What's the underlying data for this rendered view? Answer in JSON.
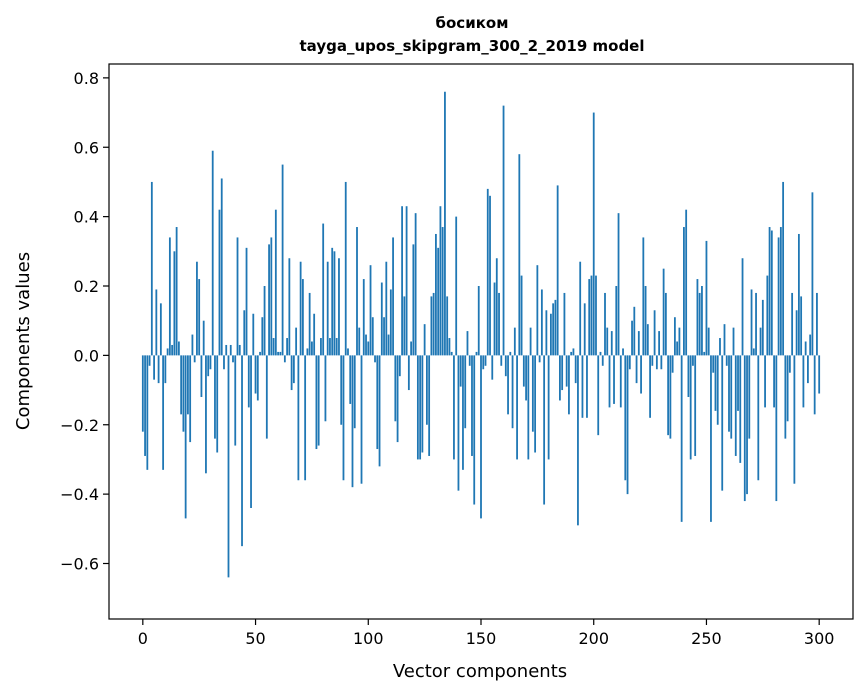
{
  "chart_data": {
    "type": "bar",
    "title": "босиком",
    "subtitle": "tayga_upos_skipgram_300_2_2019 model",
    "xlabel": "Vector components",
    "ylabel": "Components values",
    "xlim": [
      -15,
      315
    ],
    "ylim": [
      -0.76,
      0.84
    ],
    "xticks": [
      0,
      50,
      100,
      150,
      200,
      250,
      300
    ],
    "yticks": [
      -0.6,
      -0.4,
      -0.2,
      0.0,
      0.2,
      0.4,
      0.6,
      0.8
    ],
    "ytick_labels": [
      "−0.6",
      "−0.4",
      "−0.2",
      "0.0",
      "0.2",
      "0.4",
      "0.6",
      "0.8"
    ],
    "grid": false,
    "bar_color": "#1f77b4",
    "x_start": 0,
    "values": [
      -0.22,
      -0.29,
      -0.33,
      -0.03,
      0.5,
      -0.07,
      0.19,
      -0.08,
      0.15,
      -0.33,
      -0.08,
      0.02,
      0.34,
      0.03,
      0.3,
      0.37,
      0.04,
      -0.17,
      -0.22,
      -0.47,
      -0.17,
      -0.25,
      0.06,
      -0.02,
      0.27,
      0.22,
      -0.12,
      0.1,
      -0.34,
      -0.06,
      -0.04,
      0.59,
      -0.24,
      -0.28,
      0.42,
      0.51,
      -0.04,
      0.03,
      -0.64,
      0.03,
      -0.02,
      -0.26,
      0.34,
      0.03,
      -0.55,
      0.13,
      0.31,
      -0.15,
      -0.44,
      0.12,
      -0.11,
      -0.13,
      0.01,
      0.11,
      0.2,
      -0.24,
      0.32,
      0.34,
      0.05,
      0.42,
      0.01,
      0.01,
      0.55,
      -0.02,
      0.05,
      0.28,
      -0.1,
      -0.08,
      0.08,
      -0.36,
      0.27,
      0.22,
      -0.36,
      0.02,
      0.18,
      0.04,
      0.12,
      -0.27,
      -0.26,
      0.05,
      0.38,
      -0.19,
      0.27,
      0.05,
      0.31,
      0.3,
      0.05,
      0.28,
      -0.2,
      -0.36,
      0.5,
      0.02,
      -0.14,
      -0.38,
      -0.21,
      0.37,
      0.08,
      -0.37,
      0.22,
      0.06,
      0.04,
      0.26,
      0.11,
      -0.02,
      -0.27,
      -0.32,
      0.21,
      0.11,
      0.27,
      0.06,
      0.19,
      0.34,
      -0.19,
      -0.25,
      -0.06,
      0.43,
      0.17,
      0.43,
      -0.1,
      0.04,
      0.32,
      0.41,
      -0.3,
      -0.3,
      -0.28,
      0.09,
      -0.2,
      -0.29,
      0.17,
      0.18,
      0.35,
      0.31,
      0.43,
      0.37,
      0.76,
      0.17,
      0.05,
      0.01,
      -0.3,
      0.4,
      -0.39,
      -0.09,
      -0.33,
      -0.21,
      0.07,
      -0.03,
      -0.29,
      -0.43,
      0.01,
      0.2,
      -0.47,
      -0.04,
      -0.03,
      0.48,
      0.46,
      -0.07,
      0.21,
      0.28,
      0.18,
      -0.03,
      0.72,
      -0.06,
      -0.17,
      0.01,
      -0.21,
      0.08,
      -0.3,
      0.58,
      0.23,
      -0.09,
      -0.13,
      -0.3,
      0.08,
      -0.22,
      -0.28,
      0.26,
      -0.02,
      0.19,
      -0.43,
      0.13,
      -0.3,
      0.12,
      0.15,
      0.16,
      0.49,
      -0.13,
      -0.1,
      0.18,
      -0.09,
      -0.17,
      0.01,
      0.02,
      -0.08,
      -0.49,
      0.27,
      -0.18,
      0.15,
      -0.18,
      0.22,
      0.23,
      0.7,
      0.23,
      -0.23,
      0.01,
      -0.03,
      0.18,
      0.08,
      -0.15,
      0.07,
      -0.14,
      0.2,
      0.41,
      -0.15,
      0.02,
      -0.36,
      -0.4,
      -0.04,
      0.1,
      0.14,
      -0.08,
      0.07,
      -0.11,
      0.34,
      0.2,
      0.09,
      -0.18,
      -0.03,
      0.13,
      -0.04,
      0.07,
      -0.04,
      0.25,
      0.18,
      -0.23,
      -0.24,
      -0.05,
      0.11,
      0.04,
      0.08,
      -0.48,
      0.37,
      0.42,
      -0.12,
      -0.3,
      -0.03,
      -0.29,
      0.22,
      0.18,
      0.2,
      0.01,
      0.33,
      0.08,
      -0.48,
      -0.05,
      -0.16,
      -0.2,
      0.05,
      -0.39,
      0.09,
      -0.03,
      -0.22,
      -0.24,
      0.08,
      -0.29,
      -0.16,
      -0.31,
      0.28,
      -0.42,
      -0.4,
      -0.24,
      0.19,
      0.02,
      0.18,
      -0.36,
      0.08,
      0.16,
      -0.15,
      0.23,
      0.37,
      0.36,
      -0.15,
      -0.42,
      0.34,
      0.37,
      0.5,
      -0.24,
      -0.19,
      -0.05,
      0.18,
      -0.37,
      0.13,
      0.35,
      0.17,
      -0.15,
      0.04,
      -0.08,
      0.06,
      0.47,
      -0.17,
      0.18,
      -0.11
    ]
  }
}
